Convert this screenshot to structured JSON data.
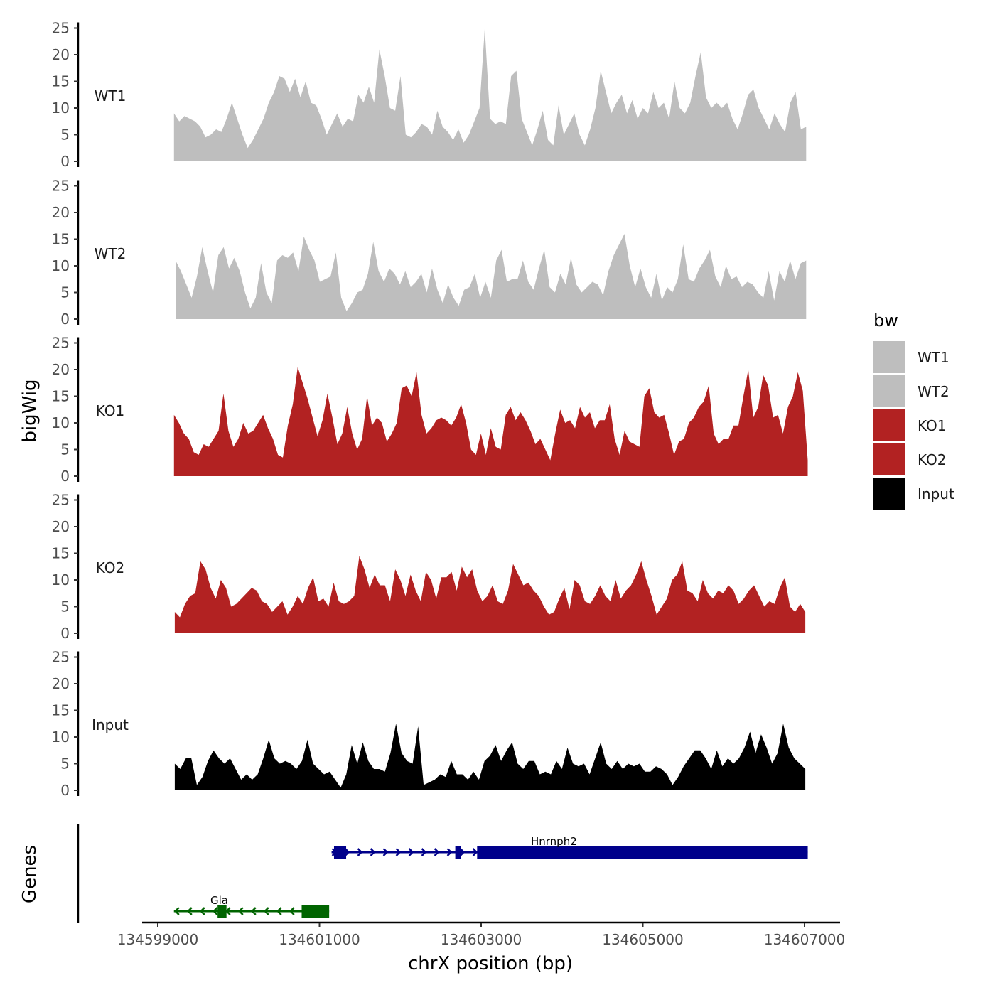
{
  "chart_data": {
    "type": "area",
    "chromosome": "chrX",
    "xlabel": "chrX position (bp)",
    "ylabel": "bigWig",
    "genes_label": "Genes",
    "xlim": [
      134598900,
      134607200
    ],
    "x_ticks": [
      134599000,
      134601000,
      134603000,
      134605000,
      134607000
    ],
    "x_tick_labels": [
      "134599000",
      "134601000",
      "134603000",
      "134605000",
      "134607000"
    ],
    "ylim": [
      0,
      25
    ],
    "y_ticks": [
      0,
      5,
      10,
      15,
      20,
      25
    ],
    "y_tick_labels": [
      "0",
      "5",
      "10",
      "15",
      "20",
      "25"
    ],
    "legend": {
      "title": "bw",
      "entries": [
        {
          "name": "WT1",
          "color": "#bebebe"
        },
        {
          "name": "WT2",
          "color": "#bebebe"
        },
        {
          "name": "KO1",
          "color": "#b22222"
        },
        {
          "name": "KO2",
          "color": "#b22222"
        },
        {
          "name": "Input",
          "color": "#000000"
        }
      ]
    },
    "series": [
      {
        "name": "WT1",
        "color": "#bebebe",
        "x_start": 134599200,
        "x_end": 134607020,
        "values": [
          9,
          7.5,
          8.5,
          8,
          7.5,
          6.5,
          4.5,
          5,
          6,
          5.5,
          8,
          11,
          8,
          5,
          2.5,
          4,
          6,
          8,
          11,
          13,
          16,
          15.5,
          13,
          15.5,
          12,
          15,
          11,
          10.5,
          8,
          5,
          7,
          9,
          6.5,
          8,
          7.5,
          12.5,
          11,
          14,
          11,
          21,
          16,
          10,
          9.5,
          16,
          5,
          4.5,
          5.5,
          7,
          6.5,
          5,
          9.5,
          6.5,
          5.5,
          4,
          6,
          3.5,
          5,
          7.5,
          10,
          25,
          8,
          7,
          7.5,
          7,
          16,
          17,
          8,
          5.5,
          3,
          6,
          9.5,
          4,
          3,
          10.5,
          5,
          7,
          9,
          5,
          3,
          6,
          10,
          17,
          13,
          9,
          11,
          12.5,
          9,
          11.5,
          8,
          10,
          9,
          13,
          10,
          11,
          8,
          15,
          10,
          9,
          11,
          16,
          20.5,
          12,
          10,
          11,
          10,
          11,
          8,
          6,
          9,
          12.5,
          13.5,
          10,
          8,
          6,
          9,
          7,
          5.5,
          11,
          13,
          6,
          6.5
        ],
        "rough": "WT1 track: sampled profile"
      },
      {
        "name": "WT2",
        "color": "#bebebe",
        "x_start": 134599220,
        "x_end": 134607020,
        "values": [
          11,
          9,
          6.5,
          4,
          8,
          13.5,
          9,
          5,
          12,
          13.5,
          9.5,
          11.5,
          9,
          5,
          2,
          4,
          10.5,
          5,
          3,
          11,
          12,
          11.5,
          12.5,
          9,
          15.5,
          13,
          11,
          7,
          7.5,
          8,
          12.5,
          4,
          1.5,
          3,
          5,
          5.5,
          8.5,
          14.5,
          9,
          7,
          9.5,
          8.5,
          6.5,
          9,
          6,
          7,
          8.5,
          5,
          9.5,
          5.5,
          3,
          6.5,
          4,
          2.5,
          5.5,
          6,
          8.5,
          4,
          7,
          4,
          11,
          13,
          7,
          7.5,
          7.5,
          11,
          7,
          5.5,
          9.5,
          13,
          6,
          5,
          8.5,
          6.5,
          11.5,
          6.5,
          5,
          6,
          7,
          6.5,
          4.5,
          9,
          12,
          14,
          16,
          10,
          6,
          9.5,
          6,
          4,
          8.5,
          3.5,
          6,
          5,
          7.5,
          14,
          7.5,
          7,
          9.5,
          11,
          13,
          8,
          6,
          10,
          7.5,
          8,
          6,
          7,
          6.5,
          5,
          4,
          9,
          3.5,
          9,
          7,
          11,
          7.5,
          10.5,
          11
        ],
        "rough": "WT2 track"
      },
      {
        "name": "KO1",
        "color": "#b22222",
        "x_start": 134599200,
        "x_end": 134607040,
        "values": [
          11.5,
          10,
          8,
          7,
          4.5,
          4,
          6,
          5.5,
          7,
          8.5,
          15.5,
          8.5,
          5.5,
          7,
          10,
          8,
          8.5,
          10,
          11.5,
          9,
          7,
          4,
          3.5,
          9.5,
          13.5,
          20.5,
          17.5,
          14.5,
          11,
          7.5,
          10.5,
          15.5,
          11,
          6,
          8,
          13,
          8,
          5,
          7,
          15,
          9.5,
          11,
          10,
          6.5,
          8,
          10,
          16.5,
          17,
          15,
          19.5,
          11.5,
          8,
          9,
          10.5,
          11,
          10.5,
          9.5,
          11,
          13.5,
          10,
          5,
          4,
          8,
          4,
          9,
          5.5,
          5,
          11.5,
          13,
          10.5,
          12,
          10.5,
          8.5,
          6,
          7,
          5,
          3,
          8,
          12.5,
          10,
          10.5,
          9,
          13,
          11,
          12,
          9,
          10.5,
          10.5,
          13.5,
          7,
          4,
          8.5,
          6.5,
          6,
          5.5,
          15,
          16.5,
          12,
          11,
          11.5,
          8,
          4,
          6.5,
          7,
          10,
          11,
          13,
          14,
          17,
          8,
          6,
          7,
          7,
          9.5,
          9.5,
          15,
          20,
          11,
          13,
          19,
          17,
          11,
          11.5,
          8,
          13,
          15,
          19.5,
          16,
          3
        ],
        "rough": "KO1 track"
      },
      {
        "name": "KO2",
        "color": "#b22222",
        "x_start": 134599210,
        "x_end": 134607010,
        "values": [
          4,
          3,
          5.5,
          7,
          7.5,
          13.5,
          12,
          8.5,
          6.5,
          10,
          8.5,
          5,
          5.5,
          6.5,
          7.5,
          8.5,
          8,
          6,
          5.5,
          4,
          5,
          6,
          3.5,
          5,
          7,
          5.5,
          8.5,
          10.5,
          6,
          6.5,
          5,
          9.5,
          6,
          5.5,
          6,
          7,
          14.5,
          12,
          8.5,
          11,
          9,
          9,
          6,
          12,
          10,
          7,
          11,
          8,
          6,
          11.5,
          10,
          6.5,
          10.5,
          10.5,
          11.5,
          8,
          12.5,
          10.5,
          12,
          8,
          6,
          7,
          9,
          6,
          5.5,
          8,
          13,
          11,
          9,
          9.5,
          8,
          7,
          5,
          3.5,
          4,
          6.5,
          8.5,
          4.5,
          10,
          9,
          6,
          5.5,
          7,
          9,
          7,
          6,
          10,
          6.5,
          8,
          9,
          11,
          13.5,
          10,
          7,
          3.5,
          5,
          6.5,
          10,
          11,
          13.5,
          8,
          7.5,
          6,
          10,
          7.5,
          6.5,
          8,
          7.5,
          9,
          8,
          5.5,
          6.5,
          8,
          9,
          7,
          5,
          6,
          5.5,
          8.5,
          10.5,
          5,
          4,
          5.5,
          4
        ],
        "rough": "KO2 track"
      },
      {
        "name": "Input",
        "color": "#000000",
        "x_start": 134599210,
        "x_end": 134607010,
        "values": [
          5,
          4,
          6,
          6,
          1,
          2.5,
          5.5,
          7.5,
          6,
          5,
          6,
          4,
          2,
          3,
          2,
          3,
          6,
          9.5,
          6,
          5,
          5.5,
          5,
          4,
          5.5,
          9.5,
          5,
          4,
          3,
          3.5,
          2,
          0.5,
          3,
          8.5,
          5,
          9,
          5.5,
          4,
          4,
          3.5,
          7,
          12.5,
          7,
          5.5,
          5,
          12,
          1,
          1.5,
          2,
          3,
          2.5,
          5.5,
          3,
          3,
          2,
          3.5,
          2,
          5.5,
          6.5,
          8.5,
          5.5,
          7.5,
          9,
          5,
          4,
          5.5,
          5.5,
          3,
          3.5,
          3,
          5.5,
          4,
          8,
          5,
          4.5,
          5,
          3,
          6,
          9,
          5,
          4,
          5.5,
          4,
          5,
          4.5,
          5,
          3.5,
          3.5,
          4.5,
          4,
          3,
          1,
          2.5,
          4.5,
          6,
          7.5,
          7.5,
          6,
          4,
          7.5,
          4.5,
          6,
          5,
          6,
          8,
          11,
          7,
          10.5,
          8,
          5,
          7,
          12.5,
          8,
          6,
          5,
          4
        ],
        "rough": "Input track"
      }
    ],
    "genes": [
      {
        "name": "Hnrnph2",
        "strand": "+",
        "color": "#00008b",
        "start": 134601150,
        "end": 134607040,
        "exons": [
          [
            134601180,
            134601330
          ],
          [
            134602680,
            134602750
          ],
          [
            134602950,
            134607040
          ]
        ]
      },
      {
        "name": "Gla",
        "strand": "-",
        "color": "#006400",
        "start": 134599200,
        "end": 134601120,
        "exons": [
          [
            134599740,
            134599850
          ],
          [
            134600780,
            134601120
          ]
        ]
      }
    ]
  }
}
